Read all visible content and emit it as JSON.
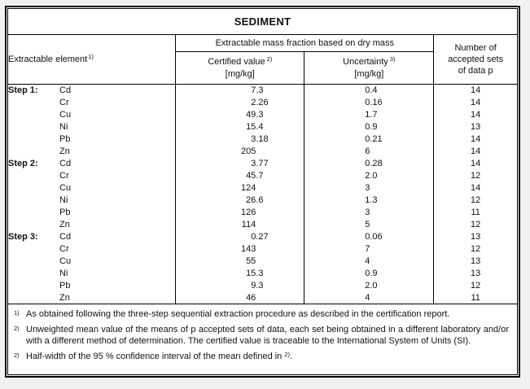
{
  "page": {
    "background_color": "#f1f1f1",
    "table_background_color": "#ffffff",
    "border_color": "#000000"
  },
  "table": {
    "title": "SEDIMENT",
    "header": {
      "element_label": "Extractable element",
      "element_sup": "1)",
      "group_label": "Extractable mass fraction based on dry mass",
      "certified_label": "Certified value",
      "certified_sup": "2)",
      "certified_unit": "[mg/kg]",
      "uncertainty_label": "Uncertainty",
      "uncertainty_sup": "3)",
      "uncertainty_unit": "[mg/kg]",
      "sets_label": "Number of\naccepted sets\nof data p"
    },
    "rows": [
      {
        "step": "Step 1:",
        "element": "Cd",
        "certified": "7.3",
        "uncertainty": "0.4",
        "sets": "14"
      },
      {
        "step": "",
        "element": "Cr",
        "certified": "2.26",
        "uncertainty": "0.16",
        "sets": "14"
      },
      {
        "step": "",
        "element": "Cu",
        "certified": "49.3",
        "uncertainty": "1.7",
        "sets": "14"
      },
      {
        "step": "",
        "element": "Ni",
        "certified": "15.4",
        "uncertainty": "0.9",
        "sets": "13"
      },
      {
        "step": "",
        "element": "Pb",
        "certified": "3.18",
        "uncertainty": "0.21",
        "sets": "14"
      },
      {
        "step": "",
        "element": "Zn",
        "certified": "205",
        "uncertainty": "6",
        "sets": "14"
      },
      {
        "step": "Step 2:",
        "element": "Cd",
        "certified": "3.77",
        "uncertainty": "0.28",
        "sets": "14"
      },
      {
        "step": "",
        "element": "Cr",
        "certified": "45.7",
        "uncertainty": "2.0",
        "sets": "12"
      },
      {
        "step": "",
        "element": "Cu",
        "certified": "124",
        "uncertainty": "3",
        "sets": "14"
      },
      {
        "step": "",
        "element": "Ni",
        "certified": "26.6",
        "uncertainty": "1.3",
        "sets": "12"
      },
      {
        "step": "",
        "element": "Pb",
        "certified": "126",
        "uncertainty": "3",
        "sets": "11"
      },
      {
        "step": "",
        "element": "Zn",
        "certified": "114",
        "uncertainty": "5",
        "sets": "12"
      },
      {
        "step": "Step 3:",
        "element": "Cd",
        "certified": "0.27",
        "uncertainty": "0.06",
        "sets": "13"
      },
      {
        "step": "",
        "element": "Cr",
        "certified": "143",
        "uncertainty": "7",
        "sets": "12"
      },
      {
        "step": "",
        "element": "Cu",
        "certified": "55",
        "uncertainty": "4",
        "sets": "13"
      },
      {
        "step": "",
        "element": "Ni",
        "certified": "15.3",
        "uncertainty": "0.9",
        "sets": "13"
      },
      {
        "step": "",
        "element": "Pb",
        "certified": "9.3",
        "uncertainty": "2.0",
        "sets": "12"
      },
      {
        "step": "",
        "element": "Zn",
        "certified": "46",
        "uncertainty": "4",
        "sets": "11"
      }
    ]
  },
  "footnotes": [
    {
      "marker": "1)",
      "text": "As obtained following the three-step sequential extraction procedure as described in the certification report.",
      "justify": false
    },
    {
      "marker": "2)",
      "text": "Unweighted mean value of the means of p accepted sets of data, each set being obtained in a different laboratory and/or with a different method of determination. The certified value is traceable to the International System of Units (SI).",
      "justify": true
    },
    {
      "marker": "2)",
      "text": "Half-width of the 95 % confidence interval of the mean defined in ",
      "sup_tail": "2)",
      "tail": ".",
      "justify": false
    }
  ]
}
